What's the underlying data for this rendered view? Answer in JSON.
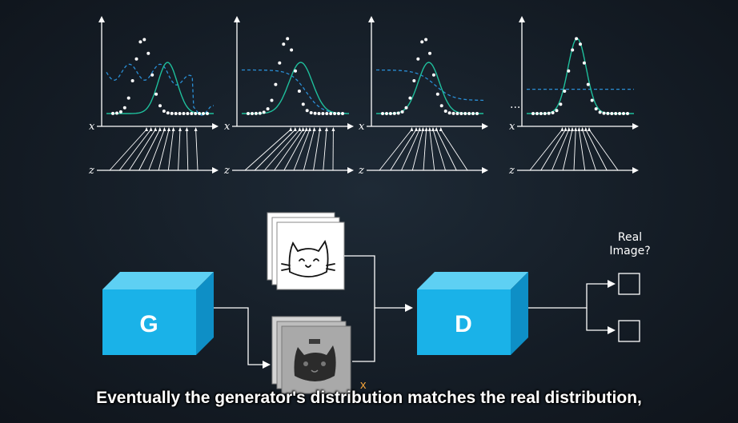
{
  "panels": [
    {
      "label_x": "x",
      "label_z": "z",
      "real_mu": 0.34,
      "gen_mu": 0.57,
      "gen_sigma": 0.09,
      "disc": "wavy",
      "disc_level": 0.55,
      "z_targets": [
        0.4,
        0.44,
        0.48,
        0.52,
        0.56,
        0.6,
        0.64,
        0.7,
        0.76,
        0.84
      ]
    },
    {
      "label_x": "x",
      "label_z": "z",
      "real_mu": 0.42,
      "gen_mu": 0.55,
      "gen_sigma": 0.11,
      "disc": "sigmoid",
      "disc_level": 0.58,
      "z_targets": [
        0.48,
        0.52,
        0.56,
        0.59,
        0.62,
        0.65,
        0.69,
        0.74,
        0.8,
        0.86
      ]
    },
    {
      "label_x": "x",
      "label_z": "z",
      "real_mu": 0.45,
      "gen_mu": 0.49,
      "gen_sigma": 0.1,
      "disc": "sigmoid_soft",
      "disc_level": 0.58,
      "z_targets": [
        0.36,
        0.4,
        0.43,
        0.46,
        0.49,
        0.52,
        0.55,
        0.58,
        0.62
      ]
    },
    {
      "label_x": "x",
      "label_z": "z",
      "real_mu": 0.47,
      "gen_mu": 0.47,
      "gen_sigma": 0.085,
      "disc": "flat",
      "disc_level": 0.38,
      "z_targets": [
        0.36,
        0.39,
        0.42,
        0.45,
        0.48,
        0.51,
        0.54,
        0.57,
        0.6
      ]
    }
  ],
  "ellipsis": "...",
  "generator": {
    "label": "G",
    "color": "#1ab2e8"
  },
  "discriminator": {
    "label": "D",
    "color": "#1ab2e8"
  },
  "fake_marker": "x",
  "output_label_line1": "Real",
  "output_label_line2": "Image?",
  "caption": "Eventually the generator's distribution matches the real distribution,",
  "colors": {
    "real": "#ffffff",
    "generated": "#1fbf9c",
    "discriminator": "#2a8fd6",
    "axis": "#ffffff"
  }
}
